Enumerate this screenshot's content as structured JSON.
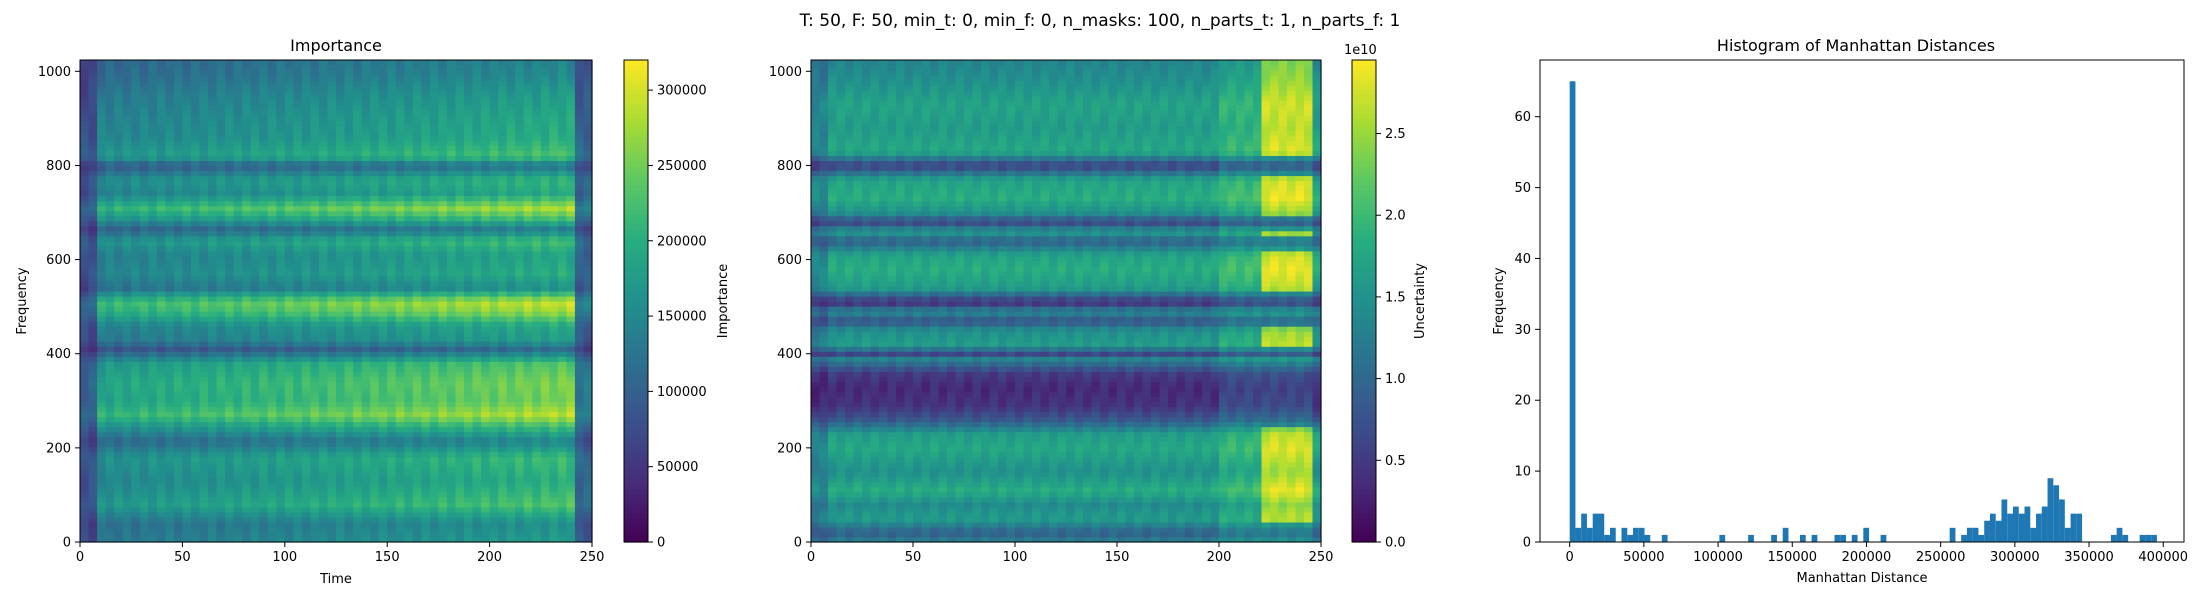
{
  "suptitle": "T: 50, F: 50, min_t: 0, min_f: 0, n_masks: 100, n_parts_t: 1, n_parts_f: 1",
  "chart_data": [
    {
      "type": "heatmap",
      "title": "Importance",
      "xlabel": "Time",
      "ylabel": "Frequency",
      "xlim": [
        0,
        250
      ],
      "ylim": [
        0,
        1024
      ],
      "xticks": [
        "0",
        "50",
        "100",
        "150",
        "200",
        "250"
      ],
      "yticks": [
        "0",
        "200",
        "400",
        "600",
        "800",
        "1000"
      ],
      "colormap": "viridis",
      "colorbar": {
        "label": "Importance",
        "range": [
          0,
          320000
        ],
        "ticks": [
          "0",
          "50000",
          "100000",
          "150000",
          "200000",
          "250000",
          "300000"
        ],
        "offset_text": ""
      },
      "pattern": "horizontal bands; values rise toward the right (time 200-240); dark columns near time 0-10 and 240-250; brightest bands near frequency 260-310 and 490-530",
      "band_levels": [
        {
          "f": 0,
          "v": 0.55
        },
        {
          "f": 40,
          "v": 0.5
        },
        {
          "f": 80,
          "v": 0.72
        },
        {
          "f": 130,
          "v": 0.62
        },
        {
          "f": 180,
          "v": 0.68
        },
        {
          "f": 215,
          "v": 0.45
        },
        {
          "f": 250,
          "v": 0.72
        },
        {
          "f": 270,
          "v": 0.9
        },
        {
          "f": 300,
          "v": 0.78
        },
        {
          "f": 340,
          "v": 0.8
        },
        {
          "f": 380,
          "v": 0.72
        },
        {
          "f": 410,
          "v": 0.35
        },
        {
          "f": 430,
          "v": 0.55
        },
        {
          "f": 460,
          "v": 0.6
        },
        {
          "f": 490,
          "v": 0.85
        },
        {
          "f": 510,
          "v": 0.92
        },
        {
          "f": 540,
          "v": 0.5
        },
        {
          "f": 570,
          "v": 0.62
        },
        {
          "f": 610,
          "v": 0.58
        },
        {
          "f": 640,
          "v": 0.7
        },
        {
          "f": 665,
          "v": 0.42
        },
        {
          "f": 690,
          "v": 0.72
        },
        {
          "f": 710,
          "v": 0.88
        },
        {
          "f": 740,
          "v": 0.6
        },
        {
          "f": 770,
          "v": 0.66
        },
        {
          "f": 800,
          "v": 0.38
        },
        {
          "f": 820,
          "v": 0.72
        },
        {
          "f": 860,
          "v": 0.62
        },
        {
          "f": 900,
          "v": 0.6
        },
        {
          "f": 950,
          "v": 0.55
        },
        {
          "f": 990,
          "v": 0.48
        },
        {
          "f": 1024,
          "v": 0.45
        }
      ]
    },
    {
      "type": "heatmap",
      "title": "",
      "xlabel": "",
      "ylabel": "",
      "xlim": [
        0,
        250
      ],
      "ylim": [
        0,
        1024
      ],
      "xticks": [
        "0",
        "50",
        "100",
        "150",
        "200",
        "250"
      ],
      "yticks": [
        "0",
        "200",
        "400",
        "600",
        "800",
        "1000"
      ],
      "colormap": "viridis",
      "colorbar": {
        "label": "Uncertainty",
        "range": [
          0,
          2.95
        ],
        "ticks": [
          "0.0",
          "0.5",
          "1.0",
          "1.5",
          "2.0",
          "2.5"
        ],
        "offset_text": "1e10"
      },
      "pattern": "horizontal bands; darkest region at frequency 270-370; bright yellow patches near time 225-245; thin dark stripes at 400, 470, 500-530, 650, 700, 800",
      "band_levels": [
        {
          "f": 0,
          "v": 0.45
        },
        {
          "f": 20,
          "v": 0.3
        },
        {
          "f": 50,
          "v": 0.55
        },
        {
          "f": 80,
          "v": 0.48
        },
        {
          "f": 110,
          "v": 0.62
        },
        {
          "f": 150,
          "v": 0.5
        },
        {
          "f": 200,
          "v": 0.6
        },
        {
          "f": 230,
          "v": 0.55
        },
        {
          "f": 260,
          "v": 0.28
        },
        {
          "f": 290,
          "v": 0.15
        },
        {
          "f": 330,
          "v": 0.12
        },
        {
          "f": 360,
          "v": 0.18
        },
        {
          "f": 390,
          "v": 0.45
        },
        {
          "f": 400,
          "v": 0.22
        },
        {
          "f": 420,
          "v": 0.55
        },
        {
          "f": 450,
          "v": 0.5
        },
        {
          "f": 470,
          "v": 0.25
        },
        {
          "f": 490,
          "v": 0.48
        },
        {
          "f": 510,
          "v": 0.12
        },
        {
          "f": 540,
          "v": 0.55
        },
        {
          "f": 580,
          "v": 0.62
        },
        {
          "f": 610,
          "v": 0.58
        },
        {
          "f": 640,
          "v": 0.3
        },
        {
          "f": 660,
          "v": 0.55
        },
        {
          "f": 680,
          "v": 0.2
        },
        {
          "f": 700,
          "v": 0.5
        },
        {
          "f": 730,
          "v": 0.62
        },
        {
          "f": 770,
          "v": 0.58
        },
        {
          "f": 800,
          "v": 0.18
        },
        {
          "f": 830,
          "v": 0.6
        },
        {
          "f": 880,
          "v": 0.55
        },
        {
          "f": 930,
          "v": 0.58
        },
        {
          "f": 980,
          "v": 0.5
        },
        {
          "f": 1024,
          "v": 0.45
        }
      ]
    },
    {
      "type": "bar",
      "subtype": "histogram",
      "title": "Histogram of Manhattan Distances",
      "xlabel": "Manhattan Distance",
      "ylabel": "Frequency",
      "xlim": [
        -20000,
        414000
      ],
      "ylim": [
        0,
        68
      ],
      "xticks": [
        "0",
        "50000",
        "100000",
        "150000",
        "200000",
        "250000",
        "300000",
        "350000",
        "400000"
      ],
      "yticks": [
        "0",
        "10",
        "20",
        "30",
        "40",
        "50",
        "60"
      ],
      "color": "#1f77b4",
      "bin_width": 3880,
      "bins": [
        {
          "x": 0,
          "v": 65
        },
        {
          "x": 3880,
          "v": 2
        },
        {
          "x": 7760,
          "v": 4
        },
        {
          "x": 11640,
          "v": 2
        },
        {
          "x": 15520,
          "v": 4
        },
        {
          "x": 19400,
          "v": 4
        },
        {
          "x": 23280,
          "v": 1
        },
        {
          "x": 27160,
          "v": 2
        },
        {
          "x": 34920,
          "v": 2
        },
        {
          "x": 38800,
          "v": 1
        },
        {
          "x": 42680,
          "v": 2
        },
        {
          "x": 46560,
          "v": 2
        },
        {
          "x": 50440,
          "v": 1
        },
        {
          "x": 62080,
          "v": 1
        },
        {
          "x": 100880,
          "v": 1
        },
        {
          "x": 120280,
          "v": 1
        },
        {
          "x": 135800,
          "v": 1
        },
        {
          "x": 143560,
          "v": 2
        },
        {
          "x": 155200,
          "v": 1
        },
        {
          "x": 163040,
          "v": 1
        },
        {
          "x": 178480,
          "v": 1
        },
        {
          "x": 182360,
          "v": 1
        },
        {
          "x": 190120,
          "v": 1
        },
        {
          "x": 197880,
          "v": 2
        },
        {
          "x": 209520,
          "v": 1
        },
        {
          "x": 256080,
          "v": 2
        },
        {
          "x": 263840,
          "v": 1
        },
        {
          "x": 267720,
          "v": 2
        },
        {
          "x": 271600,
          "v": 2
        },
        {
          "x": 275480,
          "v": 1
        },
        {
          "x": 279360,
          "v": 3
        },
        {
          "x": 283240,
          "v": 4
        },
        {
          "x": 287120,
          "v": 3
        },
        {
          "x": 291000,
          "v": 6
        },
        {
          "x": 294880,
          "v": 4
        },
        {
          "x": 298760,
          "v": 5
        },
        {
          "x": 302640,
          "v": 4
        },
        {
          "x": 306520,
          "v": 5
        },
        {
          "x": 310400,
          "v": 2
        },
        {
          "x": 314280,
          "v": 4
        },
        {
          "x": 318160,
          "v": 5
        },
        {
          "x": 322040,
          "v": 9
        },
        {
          "x": 325920,
          "v": 8
        },
        {
          "x": 329800,
          "v": 6
        },
        {
          "x": 333680,
          "v": 2
        },
        {
          "x": 337560,
          "v": 4
        },
        {
          "x": 341440,
          "v": 4
        },
        {
          "x": 364720,
          "v": 1
        },
        {
          "x": 368600,
          "v": 2
        },
        {
          "x": 372480,
          "v": 1
        },
        {
          "x": 384120,
          "v": 1
        },
        {
          "x": 388000,
          "v": 1
        },
        {
          "x": 391880,
          "v": 1
        }
      ]
    }
  ]
}
